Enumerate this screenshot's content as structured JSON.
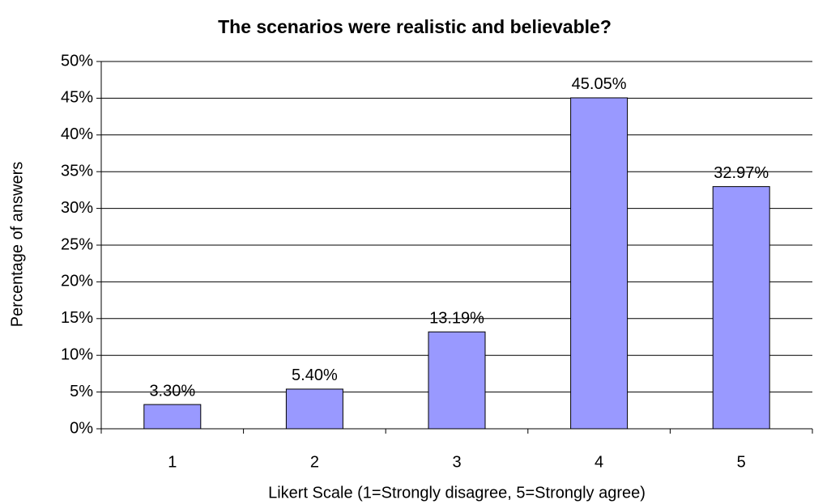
{
  "chart_data": {
    "type": "bar",
    "title": "The scenarios were realistic and believable?",
    "x_label": "Likert Scale (1=Strongly disagree, 5=Strongly agree)",
    "y_label": "Percentage of answers",
    "categories": [
      "1",
      "2",
      "3",
      "4",
      "5"
    ],
    "values": [
      3.3,
      5.4,
      13.19,
      45.05,
      32.97
    ],
    "value_labels": [
      "3.30%",
      "5.40%",
      "13.19%",
      "45.05%",
      "32.97%"
    ],
    "color": "#9999ff",
    "ylim": [
      0,
      50
    ],
    "yticks": [
      {
        "value": 0,
        "label": "0%"
      },
      {
        "value": 5,
        "label": "5%"
      },
      {
        "value": 10,
        "label": "10%"
      },
      {
        "value": 15,
        "label": "15%"
      },
      {
        "value": 20,
        "label": "20%"
      },
      {
        "value": 25,
        "label": "25%"
      },
      {
        "value": 30,
        "label": "30%"
      },
      {
        "value": 35,
        "label": "35%"
      },
      {
        "value": 40,
        "label": "40%"
      },
      {
        "value": 45,
        "label": "45%"
      },
      {
        "value": 50,
        "label": "50%"
      }
    ],
    "grid": true
  }
}
